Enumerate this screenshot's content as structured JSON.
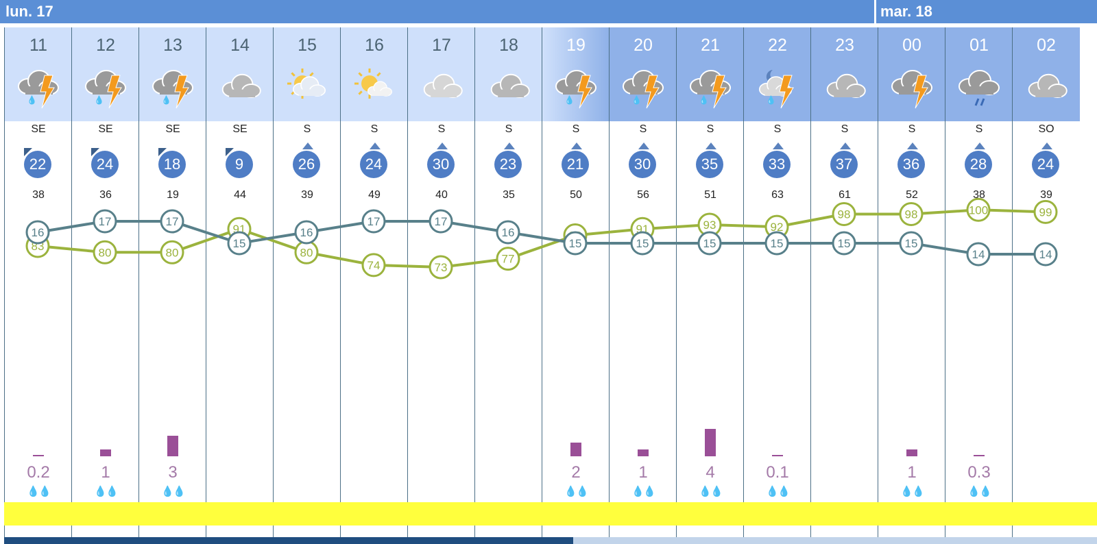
{
  "days": [
    "lun. 17",
    "mar. 18"
  ],
  "hours": [
    {
      "h": "11",
      "night": false,
      "icon": "thunderstorm-rain-icon",
      "dir": "SE",
      "wind": "22",
      "gust": "38",
      "rain": "0.2",
      "rain_mm": 0.2,
      "drops": "💧💧"
    },
    {
      "h": "12",
      "night": false,
      "icon": "thunderstorm-rain-icon",
      "dir": "SE",
      "wind": "24",
      "gust": "36",
      "rain": "1",
      "rain_mm": 1,
      "drops": "💧💧"
    },
    {
      "h": "13",
      "night": false,
      "icon": "thunderstorm-rain-icon",
      "dir": "SE",
      "wind": "18",
      "gust": "19",
      "rain": "3",
      "rain_mm": 3,
      "drops": "💧💧"
    },
    {
      "h": "14",
      "night": false,
      "icon": "cloudy-icon",
      "dir": "SE",
      "wind": "9",
      "gust": "44",
      "rain": "",
      "rain_mm": 0,
      "drops": ""
    },
    {
      "h": "15",
      "night": false,
      "icon": "partly-sunny-icon",
      "dir": "S",
      "wind": "26",
      "gust": "39",
      "rain": "",
      "rain_mm": 0,
      "drops": ""
    },
    {
      "h": "16",
      "night": false,
      "icon": "sun-cloud-icon",
      "dir": "S",
      "wind": "24",
      "gust": "49",
      "rain": "",
      "rain_mm": 0,
      "drops": ""
    },
    {
      "h": "17",
      "night": false,
      "icon": "light-cloud-icon",
      "dir": "S",
      "wind": "30",
      "gust": "40",
      "rain": "",
      "rain_mm": 0,
      "drops": ""
    },
    {
      "h": "18",
      "night": false,
      "icon": "cloudy-icon",
      "dir": "S",
      "wind": "23",
      "gust": "35",
      "rain": "",
      "rain_mm": 0,
      "drops": ""
    },
    {
      "h": "19",
      "night": true,
      "icon": "thunderstorm-rain-icon",
      "dir": "S",
      "wind": "21",
      "gust": "50",
      "rain": "2",
      "rain_mm": 2,
      "drops": "💧💧"
    },
    {
      "h": "20",
      "night": true,
      "icon": "thunderstorm-rain-icon",
      "dir": "S",
      "wind": "30",
      "gust": "56",
      "rain": "1",
      "rain_mm": 1,
      "drops": "💧💧"
    },
    {
      "h": "21",
      "night": true,
      "icon": "thunderstorm-rain-icon",
      "dir": "S",
      "wind": "35",
      "gust": "51",
      "rain": "4",
      "rain_mm": 4,
      "drops": "💧💧"
    },
    {
      "h": "22",
      "night": true,
      "icon": "night-thunderstorm-icon",
      "dir": "S",
      "wind": "33",
      "gust": "63",
      "rain": "0.1",
      "rain_mm": 0.1,
      "drops": "💧💧"
    },
    {
      "h": "23",
      "night": true,
      "icon": "cloudy-icon",
      "dir": "S",
      "wind": "37",
      "gust": "61",
      "rain": "",
      "rain_mm": 0,
      "drops": ""
    },
    {
      "h": "00",
      "night": true,
      "icon": "thunderstorm-icon",
      "dir": "S",
      "wind": "36",
      "gust": "52",
      "rain": "1",
      "rain_mm": 1,
      "drops": "💧💧"
    },
    {
      "h": "01",
      "night": true,
      "icon": "rain-cloud-icon",
      "dir": "S",
      "wind": "28",
      "gust": "38",
      "rain": "0.3",
      "rain_mm": 0.3,
      "drops": "💧💧"
    },
    {
      "h": "02",
      "night": true,
      "icon": "cloudy-icon",
      "dir": "SO",
      "wind": "24",
      "gust": "39",
      "rain": "",
      "rain_mm": 0,
      "drops": ""
    }
  ],
  "temperature": {
    "color": "#58808a",
    "values": [
      16,
      17,
      17,
      15,
      16,
      17,
      17,
      16,
      15,
      15,
      15,
      15,
      15,
      15,
      14,
      14
    ]
  },
  "humidity": {
    "color": "#9bb33d",
    "values": [
      83,
      80,
      80,
      91,
      80,
      74,
      73,
      77,
      88,
      91,
      93,
      92,
      98,
      98,
      100,
      99
    ]
  },
  "colors": {
    "day_bar": "#5b8fd6",
    "day_header": "#cfe0fb",
    "night_header": "#8fb1e8",
    "wind_bubble": "#4f7dc5",
    "rain_bar": "#9a4f97",
    "uv_strip": "#ffff3d"
  }
}
